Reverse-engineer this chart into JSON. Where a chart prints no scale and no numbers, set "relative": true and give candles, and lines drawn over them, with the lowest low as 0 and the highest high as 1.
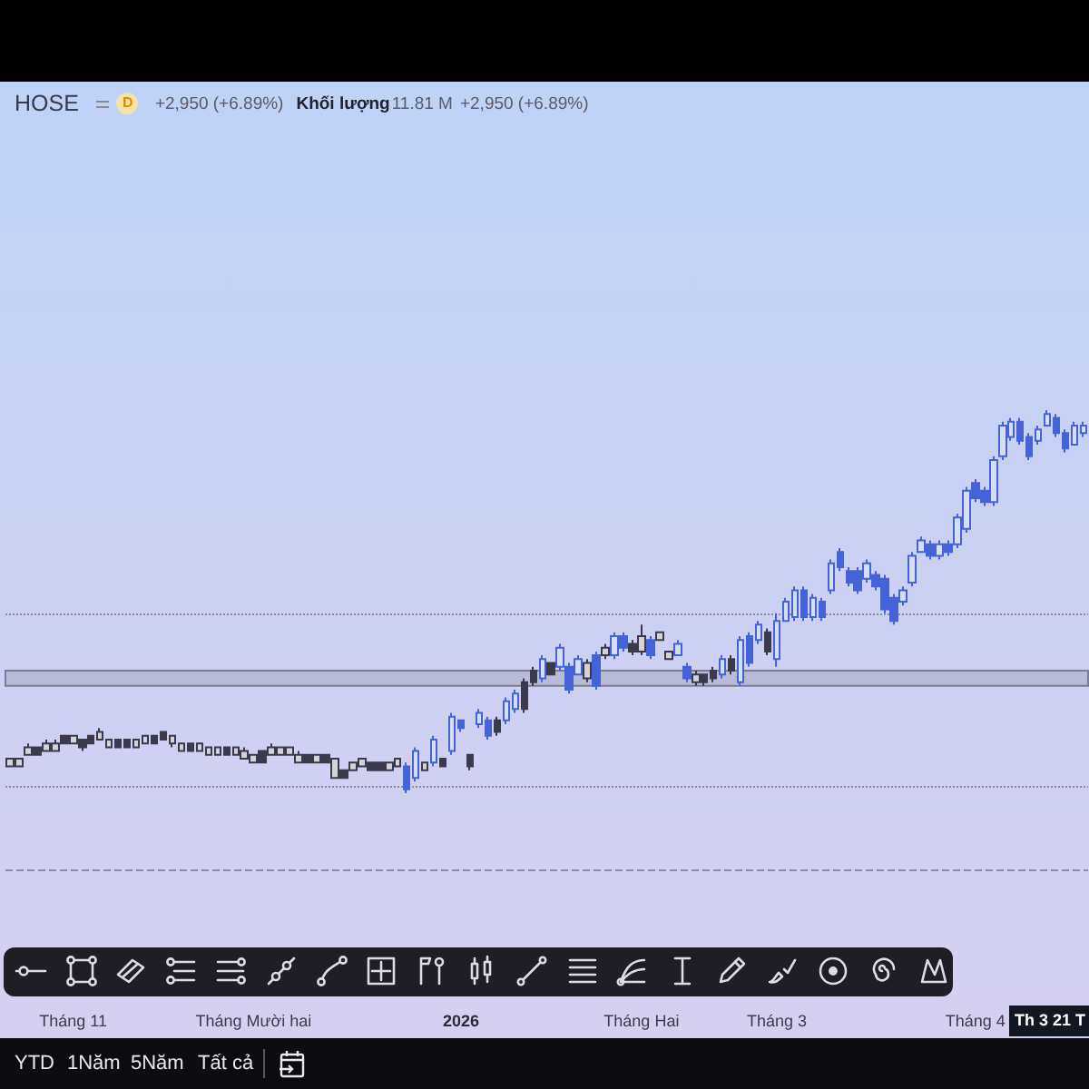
{
  "chart_data": {
    "type": "candlestick",
    "relative": true,
    "categories": [
      null,
      null,
      null,
      null,
      null,
      null,
      null,
      "Tháng 11",
      null,
      null,
      null,
      null,
      null,
      null,
      null,
      null,
      null,
      null,
      null,
      null,
      null,
      null,
      null,
      null,
      null,
      null,
      null,
      "Tháng Mười hai",
      null,
      null,
      null,
      null,
      null,
      null,
      null,
      null,
      null,
      null,
      null,
      null,
      null,
      null,
      null,
      null,
      null,
      null,
      null,
      null,
      null,
      null,
      "2026",
      null,
      null,
      null,
      null,
      null,
      null,
      null,
      null,
      null,
      null,
      null,
      null,
      null,
      null,
      null,
      null,
      null,
      null,
      null,
      "Tháng Hai",
      null,
      null,
      null,
      null,
      null,
      null,
      null,
      null,
      null,
      null,
      null,
      null,
      null,
      null,
      "Tháng 3",
      null,
      null,
      null,
      null,
      null,
      null,
      null,
      null,
      null,
      null,
      null,
      null,
      null,
      null,
      null,
      null,
      null,
      null,
      null,
      null,
      null,
      "Tháng 4",
      null,
      null,
      null,
      null,
      null,
      null,
      null,
      null,
      null,
      null,
      null,
      null
    ],
    "series": [
      {
        "color": "#3a3a4c",
        "ohlc": [
          [
            0.07,
            0.09,
            0.07,
            0.09
          ],
          [
            0.07,
            0.09,
            0.07,
            0.09
          ],
          [
            0.1,
            0.13,
            0.1,
            0.12
          ],
          [
            0.12,
            0.12,
            0.1,
            0.1
          ],
          [
            0.11,
            0.14,
            0.11,
            0.13
          ],
          [
            0.11,
            0.14,
            0.11,
            0.13
          ],
          [
            0.15,
            0.15,
            0.13,
            0.13
          ],
          [
            0.13,
            0.15,
            0.13,
            0.15
          ],
          [
            0.14,
            0.14,
            0.11,
            0.12
          ],
          [
            0.15,
            0.15,
            0.13,
            0.13
          ],
          [
            0.14,
            0.17,
            0.14,
            0.16
          ],
          [
            0.12,
            0.14,
            0.12,
            0.14
          ],
          [
            0.14,
            0.14,
            0.12,
            0.12
          ],
          [
            0.14,
            0.14,
            0.12,
            0.12
          ],
          [
            0.12,
            0.14,
            0.12,
            0.14
          ],
          [
            0.13,
            0.15,
            0.13,
            0.15
          ],
          [
            0.15,
            0.15,
            0.13,
            0.13
          ],
          [
            0.16,
            0.16,
            0.14,
            0.14
          ],
          [
            0.13,
            0.15,
            0.12,
            0.15
          ],
          [
            0.11,
            0.13,
            0.11,
            0.13
          ],
          [
            0.13,
            0.13,
            0.11,
            0.11
          ],
          [
            0.11,
            0.13,
            0.11,
            0.13
          ],
          [
            0.1,
            0.12,
            0.1,
            0.12
          ],
          [
            0.1,
            0.12,
            0.1,
            0.12
          ],
          [
            0.12,
            0.12,
            0.1,
            0.1
          ],
          [
            0.1,
            0.12,
            0.1,
            0.12
          ],
          [
            0.09,
            0.12,
            0.09,
            0.11
          ],
          [
            0.08,
            0.1,
            0.08,
            0.1
          ],
          [
            0.11,
            0.11,
            0.08,
            0.08
          ],
          [
            0.1,
            0.13,
            0.1,
            0.12
          ],
          [
            0.1,
            0.12,
            0.1,
            0.12
          ],
          [
            0.1,
            0.12,
            0.1,
            0.12
          ],
          [
            0.08,
            0.11,
            0.08,
            0.1
          ],
          [
            0.1,
            0.1,
            0.08,
            0.08
          ],
          [
            0.08,
            0.1,
            0.08,
            0.1
          ],
          [
            0.1,
            0.1,
            0.08,
            0.08
          ],
          [
            0.04,
            0.09,
            0.04,
            0.09
          ],
          [
            0.06,
            0.06,
            0.04,
            0.04
          ],
          [
            0.06,
            0.08,
            0.06,
            0.08
          ],
          [
            0.07,
            0.09,
            0.07,
            0.09
          ],
          [
            0.08,
            0.08,
            0.06,
            0.06
          ],
          [
            0.08,
            0.08,
            0.06,
            0.06
          ],
          [
            0.06,
            0.08,
            0.06,
            0.08
          ],
          [
            0.07,
            0.09,
            0.07,
            0.09
          ],
          null,
          null,
          [
            0.06,
            0.08,
            0.06,
            0.08
          ],
          null,
          [
            0.09,
            0.09,
            0.07,
            0.07
          ],
          null,
          null,
          [
            0.1,
            0.1,
            0.06,
            0.07
          ],
          null,
          null,
          [
            0.19,
            0.2,
            0.15,
            0.16
          ],
          null,
          null,
          [
            0.29,
            0.3,
            0.21,
            0.22
          ],
          [
            0.32,
            0.33,
            0.28,
            0.29
          ],
          null,
          [
            0.34,
            0.34,
            0.31,
            0.31
          ],
          null,
          null,
          null,
          [
            0.3,
            0.35,
            0.29,
            0.34
          ],
          null,
          [
            0.36,
            0.39,
            0.35,
            0.38
          ],
          null,
          null,
          [
            0.39,
            0.4,
            0.36,
            0.37
          ],
          [
            0.37,
            0.44,
            0.36,
            0.41
          ],
          null,
          [
            0.4,
            0.42,
            0.4,
            0.42
          ],
          [
            0.35,
            0.37,
            0.35,
            0.37
          ],
          null,
          null,
          [
            0.29,
            0.32,
            0.28,
            0.31
          ],
          [
            0.31,
            0.31,
            0.28,
            0.29
          ],
          [
            0.32,
            0.33,
            0.29,
            0.3
          ],
          null,
          [
            0.35,
            0.36,
            0.31,
            0.32
          ],
          null,
          null,
          null,
          [
            0.42,
            0.43,
            0.36,
            0.37
          ],
          null,
          null,
          null,
          null,
          null,
          null,
          null,
          null,
          null,
          null,
          null,
          null,
          null,
          null,
          null,
          null,
          null,
          null,
          null,
          null,
          null,
          null,
          null,
          null,
          null,
          null,
          null,
          null,
          null,
          null,
          null,
          null,
          null,
          null,
          null
        ]
      },
      {
        "color": "#4463d6",
        "ohlc": [
          null,
          null,
          null,
          null,
          null,
          null,
          null,
          null,
          null,
          null,
          null,
          null,
          null,
          null,
          null,
          null,
          null,
          null,
          null,
          null,
          null,
          null,
          null,
          null,
          null,
          null,
          null,
          null,
          null,
          null,
          null,
          null,
          null,
          null,
          null,
          null,
          null,
          null,
          null,
          null,
          null,
          null,
          null,
          null,
          [
            0.07,
            0.08,
            0.0,
            0.01
          ],
          [
            0.04,
            0.12,
            0.03,
            0.11
          ],
          null,
          [
            0.08,
            0.15,
            0.07,
            0.14
          ],
          null,
          [
            0.11,
            0.21,
            0.1,
            0.2
          ],
          [
            0.19,
            0.19,
            0.16,
            0.17
          ],
          null,
          [
            0.18,
            0.22,
            0.17,
            0.21
          ],
          [
            0.19,
            0.2,
            0.14,
            0.15
          ],
          null,
          [
            0.19,
            0.25,
            0.18,
            0.24
          ],
          [
            0.22,
            0.27,
            0.21,
            0.26
          ],
          null,
          null,
          [
            0.3,
            0.36,
            0.29,
            0.35
          ],
          null,
          [
            0.33,
            0.39,
            0.32,
            0.38
          ],
          [
            0.33,
            0.34,
            0.26,
            0.27
          ],
          [
            0.31,
            0.36,
            0.31,
            0.35
          ],
          null,
          [
            0.36,
            0.37,
            0.27,
            0.28
          ],
          null,
          [
            0.36,
            0.42,
            0.35,
            0.41
          ],
          [
            0.41,
            0.42,
            0.37,
            0.38
          ],
          null,
          null,
          [
            0.4,
            0.41,
            0.35,
            0.36
          ],
          null,
          null,
          [
            0.36,
            0.4,
            0.36,
            0.39
          ],
          [
            0.33,
            0.34,
            0.29,
            0.3
          ],
          null,
          null,
          null,
          [
            0.31,
            0.36,
            0.3,
            0.35
          ],
          null,
          [
            0.29,
            0.41,
            0.28,
            0.4
          ],
          [
            0.41,
            0.42,
            0.33,
            0.34
          ],
          [
            0.4,
            0.45,
            0.39,
            0.44
          ],
          null,
          [
            0.35,
            0.47,
            0.33,
            0.45
          ],
          [
            0.45,
            0.51,
            0.45,
            0.5
          ],
          [
            0.46,
            0.54,
            0.45,
            0.53
          ],
          [
            0.53,
            0.54,
            0.45,
            0.46
          ],
          [
            0.46,
            0.52,
            0.45,
            0.51
          ],
          [
            0.5,
            0.51,
            0.45,
            0.46
          ],
          [
            0.53,
            0.61,
            0.52,
            0.6
          ],
          [
            0.63,
            0.64,
            0.58,
            0.59
          ],
          [
            0.58,
            0.59,
            0.54,
            0.55
          ],
          [
            0.58,
            0.59,
            0.52,
            0.53
          ],
          [
            0.56,
            0.61,
            0.55,
            0.6
          ],
          [
            0.57,
            0.58,
            0.53,
            0.54
          ],
          [
            0.56,
            0.57,
            0.47,
            0.48
          ],
          [
            0.51,
            0.52,
            0.44,
            0.45
          ],
          [
            0.5,
            0.54,
            0.49,
            0.53
          ],
          [
            0.55,
            0.63,
            0.54,
            0.62
          ],
          [
            0.63,
            0.67,
            0.63,
            0.66
          ],
          [
            0.65,
            0.66,
            0.61,
            0.62
          ],
          [
            0.62,
            0.66,
            0.61,
            0.65
          ],
          [
            0.65,
            0.66,
            0.62,
            0.63
          ],
          [
            0.65,
            0.73,
            0.64,
            0.72
          ],
          [
            0.69,
            0.8,
            0.68,
            0.79
          ],
          [
            0.81,
            0.82,
            0.76,
            0.77
          ],
          [
            0.79,
            0.8,
            0.75,
            0.76
          ],
          [
            0.76,
            0.88,
            0.75,
            0.87
          ],
          [
            0.88,
            0.97,
            0.87,
            0.96
          ],
          [
            0.93,
            0.98,
            0.92,
            0.97
          ],
          [
            0.97,
            0.98,
            0.91,
            0.92
          ],
          [
            0.93,
            0.94,
            0.87,
            0.88
          ],
          [
            0.92,
            0.96,
            0.91,
            0.95
          ],
          [
            0.96,
            1.0,
            0.96,
            0.99
          ],
          [
            0.98,
            0.99,
            0.93,
            0.94
          ],
          [
            0.94,
            0.95,
            0.89,
            0.9
          ],
          [
            0.91,
            0.97,
            0.91,
            0.96
          ],
          [
            0.94,
            0.97,
            0.93,
            0.96
          ]
        ]
      }
    ],
    "ref_lines": [
      {
        "axis": "y",
        "value": 0.47,
        "color": "#8c8c9c",
        "line_style": "dotted"
      },
      {
        "axis": "y",
        "value": 0.02,
        "color": "#8c8c9c",
        "line_style": "dotted"
      },
      {
        "axis": "y",
        "value": -0.2,
        "color": "#8c8c9c",
        "line_style": "dashed"
      }
    ],
    "bands": [
      {
        "axis": "y",
        "from": 0.28,
        "to": 0.32,
        "color": "#7d7d8d"
      }
    ],
    "annotations": [
      "HOSE",
      "D",
      "+2,950 (+6.89%)",
      "Khối lượng",
      "11.81 M",
      "+2,950 (+6.89%)",
      "YTD",
      "1Năm",
      "5Năm",
      "Tất cả",
      "Th 3 21 T"
    ]
  }
}
